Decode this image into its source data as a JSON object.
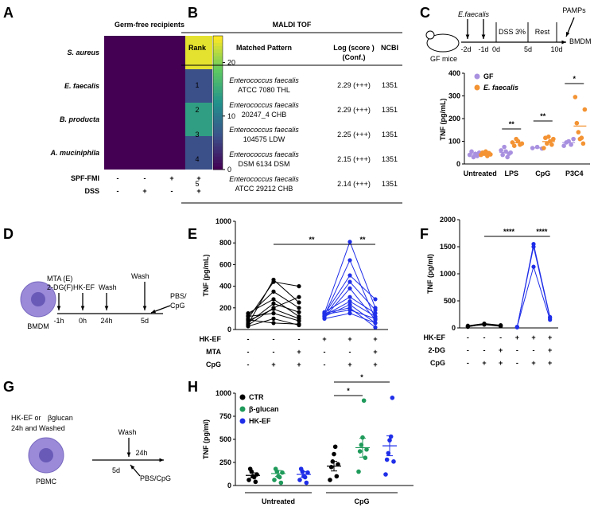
{
  "panels": [
    "A",
    "B",
    "C",
    "D",
    "E",
    "F",
    "G",
    "H"
  ],
  "colors": {
    "gf": "#a991e0",
    "ef": "#f39333",
    "black": "#000000",
    "blue": "#1f2ee8",
    "green": "#1f9a5a",
    "cell": "#9a8ad8"
  },
  "chart_data": [
    {
      "panel": "A",
      "type": "heatmap",
      "title": "Germ-free recipients",
      "rows": [
        "S. aureus",
        "E. faecalis",
        "B. producta",
        "A. muciniphila"
      ],
      "condition_rows": [
        {
          "label": "SPF-FMI",
          "values": [
            "-",
            "-",
            "+",
            "+"
          ]
        },
        {
          "label": "DSS",
          "values": [
            "-",
            "+",
            "-",
            "+"
          ]
        }
      ],
      "values": [
        [
          0,
          0,
          0,
          24
        ],
        [
          0,
          0,
          0,
          6
        ],
        [
          0,
          0,
          0,
          14
        ],
        [
          0,
          0,
          0,
          6
        ]
      ],
      "colorbar": {
        "min": 0,
        "max": 25,
        "ticks": [
          "0",
          "10",
          "20"
        ]
      }
    },
    {
      "panel": "B",
      "type": "table",
      "title": "MALDI TOF",
      "headers": [
        "Rank",
        "Matched Pattern",
        "Log (score )",
        "NCBI"
      ],
      "header_sub": "(Conf.)",
      "rows": [
        {
          "rank": "1",
          "species": "Enterococcus faecalis",
          "strain": "ATCC 7080 THL",
          "score": "2.29 (+++)",
          "ncbi": "1351"
        },
        {
          "rank": "2",
          "species": "Enterococcus faecalis",
          "strain": "20247_4 CHB",
          "score": "2.29 (+++)",
          "ncbi": "1351"
        },
        {
          "rank": "3",
          "species": "Enterococcus faecalis",
          "strain": "104575 LDW",
          "score": "2.25 (+++)",
          "ncbi": "1351"
        },
        {
          "rank": "4",
          "species": "Enterococcus faecalis",
          "strain": "DSM 6134 DSM",
          "score": "2.15 (+++)",
          "ncbi": "1351"
        },
        {
          "rank": "5",
          "species": "Enterococcus faecalis",
          "strain": "ATCC 29212 CHB",
          "score": "2.14 (+++)",
          "ncbi": "1351"
        }
      ]
    },
    {
      "panel": "C",
      "type": "scatter",
      "timeline": {
        "organism": "E.faecalis",
        "mouse": "GF mice",
        "ticks": [
          "-2d",
          "-1d",
          "0d",
          "5d",
          "10d"
        ],
        "dss": "DSS 3%",
        "rest": "Rest",
        "end": "BMDM",
        "stim": "PAMPs"
      },
      "ylabel": "TNF (pg/mL)",
      "ylim": [
        0,
        400
      ],
      "yticks": [
        "0",
        "100",
        "200",
        "300",
        "400"
      ],
      "categories": [
        "Untreated",
        "LPS",
        "CpG",
        "P3C4"
      ],
      "series": [
        {
          "name": "GF",
          "points": [
            [
              40,
              55,
              30,
              45,
              35,
              50
            ],
            [
              60,
              40,
              75,
              55,
              30,
              45,
              50
            ],
            [
              70,
              75,
              68
            ],
            [
              80,
              95,
              100,
              85,
              110
            ]
          ]
        },
        {
          "name": "E. faecalis",
          "points": [
            [
              40,
              50,
              45,
              55,
              35,
              48,
              42
            ],
            [
              95,
              80,
              110,
              100,
              85,
              90
            ],
            [
              70,
              115,
              90,
              120,
              100,
              85,
              110
            ],
            [
              295,
              180,
              140,
              110,
              115,
              90,
              240
            ]
          ]
        }
      ],
      "significance": [
        {
          "category": "LPS",
          "label": "**"
        },
        {
          "category": "CpG",
          "label": "**"
        },
        {
          "category": "P3C4",
          "label": "*"
        }
      ]
    },
    {
      "panel": "D",
      "type": "diagram",
      "labels": [
        "MTA (E)",
        "2-DG(F)",
        "HK-EF",
        "Wash",
        "Wash",
        "PBS/",
        "CpG",
        "BMDM"
      ],
      "ticks": [
        "-1h",
        "0h",
        "24h",
        "5d"
      ]
    },
    {
      "panel": "E",
      "type": "line",
      "ylabel": "TNF (pg/mL)",
      "ylim": [
        0,
        1000
      ],
      "yticks": [
        "0",
        "200",
        "400",
        "600",
        "800",
        "1000"
      ],
      "conditions": [
        {
          "label": "HK-EF",
          "values": [
            "-",
            "-",
            "-",
            "+",
            "+",
            "+"
          ]
        },
        {
          "label": "MTA",
          "values": [
            "-",
            "-",
            "+",
            "-",
            "-",
            "+"
          ]
        },
        {
          "label": "CpG",
          "values": [
            "-",
            "+",
            "+",
            "-",
            "+",
            "+"
          ]
        }
      ],
      "groups": [
        {
          "color": "black",
          "pairs": [
            [
              50,
              460,
              250
            ],
            [
              100,
              440,
              400
            ],
            [
              130,
              350,
              200
            ],
            [
              150,
              280,
              120
            ],
            [
              60,
              240,
              160
            ],
            [
              40,
              200,
              300
            ],
            [
              80,
              190,
              100
            ],
            [
              120,
              150,
              80
            ],
            [
              30,
              100,
              40
            ],
            [
              90,
              60,
              50
            ]
          ]
        },
        {
          "color": "blue",
          "pairs": [
            [
              150,
              810,
              200
            ],
            [
              130,
              640,
              100
            ],
            [
              140,
              500,
              280
            ],
            [
              120,
              440,
              180
            ],
            [
              110,
              380,
              90
            ],
            [
              160,
              300,
              150
            ],
            [
              130,
              260,
              120
            ],
            [
              120,
              230,
              60
            ],
            [
              150,
              200,
              20
            ],
            [
              140,
              180,
              100
            ],
            [
              100,
              150,
              60
            ]
          ]
        }
      ],
      "significance": [
        "**",
        "**"
      ]
    },
    {
      "panel": "F",
      "type": "line",
      "ylabel": "TNF (pg/ml)",
      "ylim": [
        0,
        2000
      ],
      "yticks": [
        "0",
        "500",
        "1000",
        "1500",
        "2000"
      ],
      "conditions": [
        {
          "label": "HK-EF",
          "values": [
            "-",
            "-",
            "-",
            "+",
            "+",
            "+"
          ]
        },
        {
          "label": "2-DG",
          "values": [
            "-",
            "-",
            "+",
            "-",
            "-",
            "+"
          ]
        },
        {
          "label": "CpG",
          "values": [
            "-",
            "+",
            "+",
            "-",
            "+",
            "+"
          ]
        }
      ],
      "groups": [
        {
          "color": "black",
          "pairs": [
            [
              20,
              70,
              40
            ],
            [
              30,
              60,
              30
            ],
            [
              40,
              80,
              50
            ]
          ]
        },
        {
          "color": "blue",
          "pairs": [
            [
              10,
              1550,
              200
            ],
            [
              15,
              1500,
              180
            ],
            [
              20,
              1130,
              150
            ]
          ]
        }
      ],
      "significance": [
        "****",
        "****"
      ]
    },
    {
      "panel": "G",
      "type": "diagram",
      "labels": [
        "HK-EF or",
        "24h  and Washed",
        "Wash",
        "24h",
        "PBS/CpG",
        "5d",
        "PBMC"
      ],
      "beta": "β"
    },
    {
      "panel": "H",
      "type": "scatter",
      "ylabel": "TNF (pg/ml)",
      "ylim": [
        0,
        1000
      ],
      "yticks": [
        "0",
        "250",
        "500",
        "750",
        "1000"
      ],
      "groups": [
        "Untreated",
        "CpG"
      ],
      "series": [
        {
          "name": "CTR",
          "means": [
            110,
            210
          ],
          "points": [
            [
              60,
              180,
              150,
              100,
              90,
              40,
              120
            ],
            [
              60,
              200,
              260,
              340,
              420,
              100,
              230
            ]
          ]
        },
        {
          "name": "β-glucan",
          "means": [
            130,
            410
          ],
          "points": [
            [
              60,
              180,
              150,
              100,
              90,
              30,
              140
            ],
            [
              150,
              370,
              440,
              520,
              920,
              300,
              390
            ]
          ]
        },
        {
          "name": "HK-EF",
          "means": [
            120,
            430
          ],
          "points": [
            [
              60,
              180,
              150,
              100,
              90,
              30,
              140
            ],
            [
              120,
              280,
              350,
              490,
              530,
              950,
              260
            ]
          ]
        }
      ],
      "significance": [
        "*",
        "*"
      ]
    }
  ]
}
